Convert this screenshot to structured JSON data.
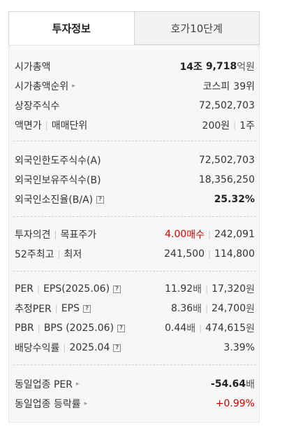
{
  "tabs": [
    {
      "label": "투자정보",
      "active": true
    },
    {
      "label": "호가10단계",
      "active": false
    }
  ],
  "market_cap": {
    "label": "시가총액",
    "value_jo": "14조",
    "value_rest": "9,718",
    "unit": "억원"
  },
  "market_cap_rank": {
    "label": "시가총액순위",
    "market": "코스피",
    "rank": "39위"
  },
  "listed_shares": {
    "label": "상장주식수",
    "value": "72,502,703"
  },
  "par_value": {
    "label_a": "액면가",
    "label_b": "매매단위",
    "value_a": "200원",
    "value_b": "1주"
  },
  "foreign_limit": {
    "label": "외국인한도주식수(A)",
    "value": "72,502,703"
  },
  "foreign_holding": {
    "label": "외국인보유주식수(B)",
    "value": "18,356,250"
  },
  "foreign_ratio": {
    "label": "외국인소진율(B/A)",
    "value": "25.32%"
  },
  "opinion": {
    "label_a": "투자의견",
    "label_b": "목표주가",
    "rating_num": "4.00",
    "rating_text": "매수",
    "target": "242,091"
  },
  "week52": {
    "label_a": "52주최고",
    "label_b": "최저",
    "high": "241,500",
    "low": "114,800"
  },
  "per_eps": {
    "label_a": "PER",
    "label_b": "EPS(2025.06)",
    "per": "11.92",
    "per_unit": "배",
    "eps": "17,320",
    "eps_unit": "원"
  },
  "est_per_eps": {
    "label_a": "추정PER",
    "label_b": "EPS",
    "per": "8.36",
    "per_unit": "배",
    "eps": "24,700",
    "eps_unit": "원"
  },
  "pbr_bps": {
    "label_a": "PBR",
    "label_b": "BPS (2025.06)",
    "pbr": "0.44",
    "pbr_unit": "배",
    "bps": "474,615",
    "bps_unit": "원"
  },
  "dividend": {
    "label": "배당수익률",
    "date": "2025.04",
    "value": "3.39%"
  },
  "sector_per": {
    "label": "동일업종 PER",
    "value": "-54.64",
    "unit": "배"
  },
  "sector_change": {
    "label": "동일업종 등락률",
    "value": "+0.99%"
  },
  "icons": {
    "info": "?",
    "arrow": "▸"
  },
  "colors": {
    "red": "#d60000",
    "panel_bg": "#f7f7f7",
    "tab_inactive_bg": "#f2f2f2"
  }
}
